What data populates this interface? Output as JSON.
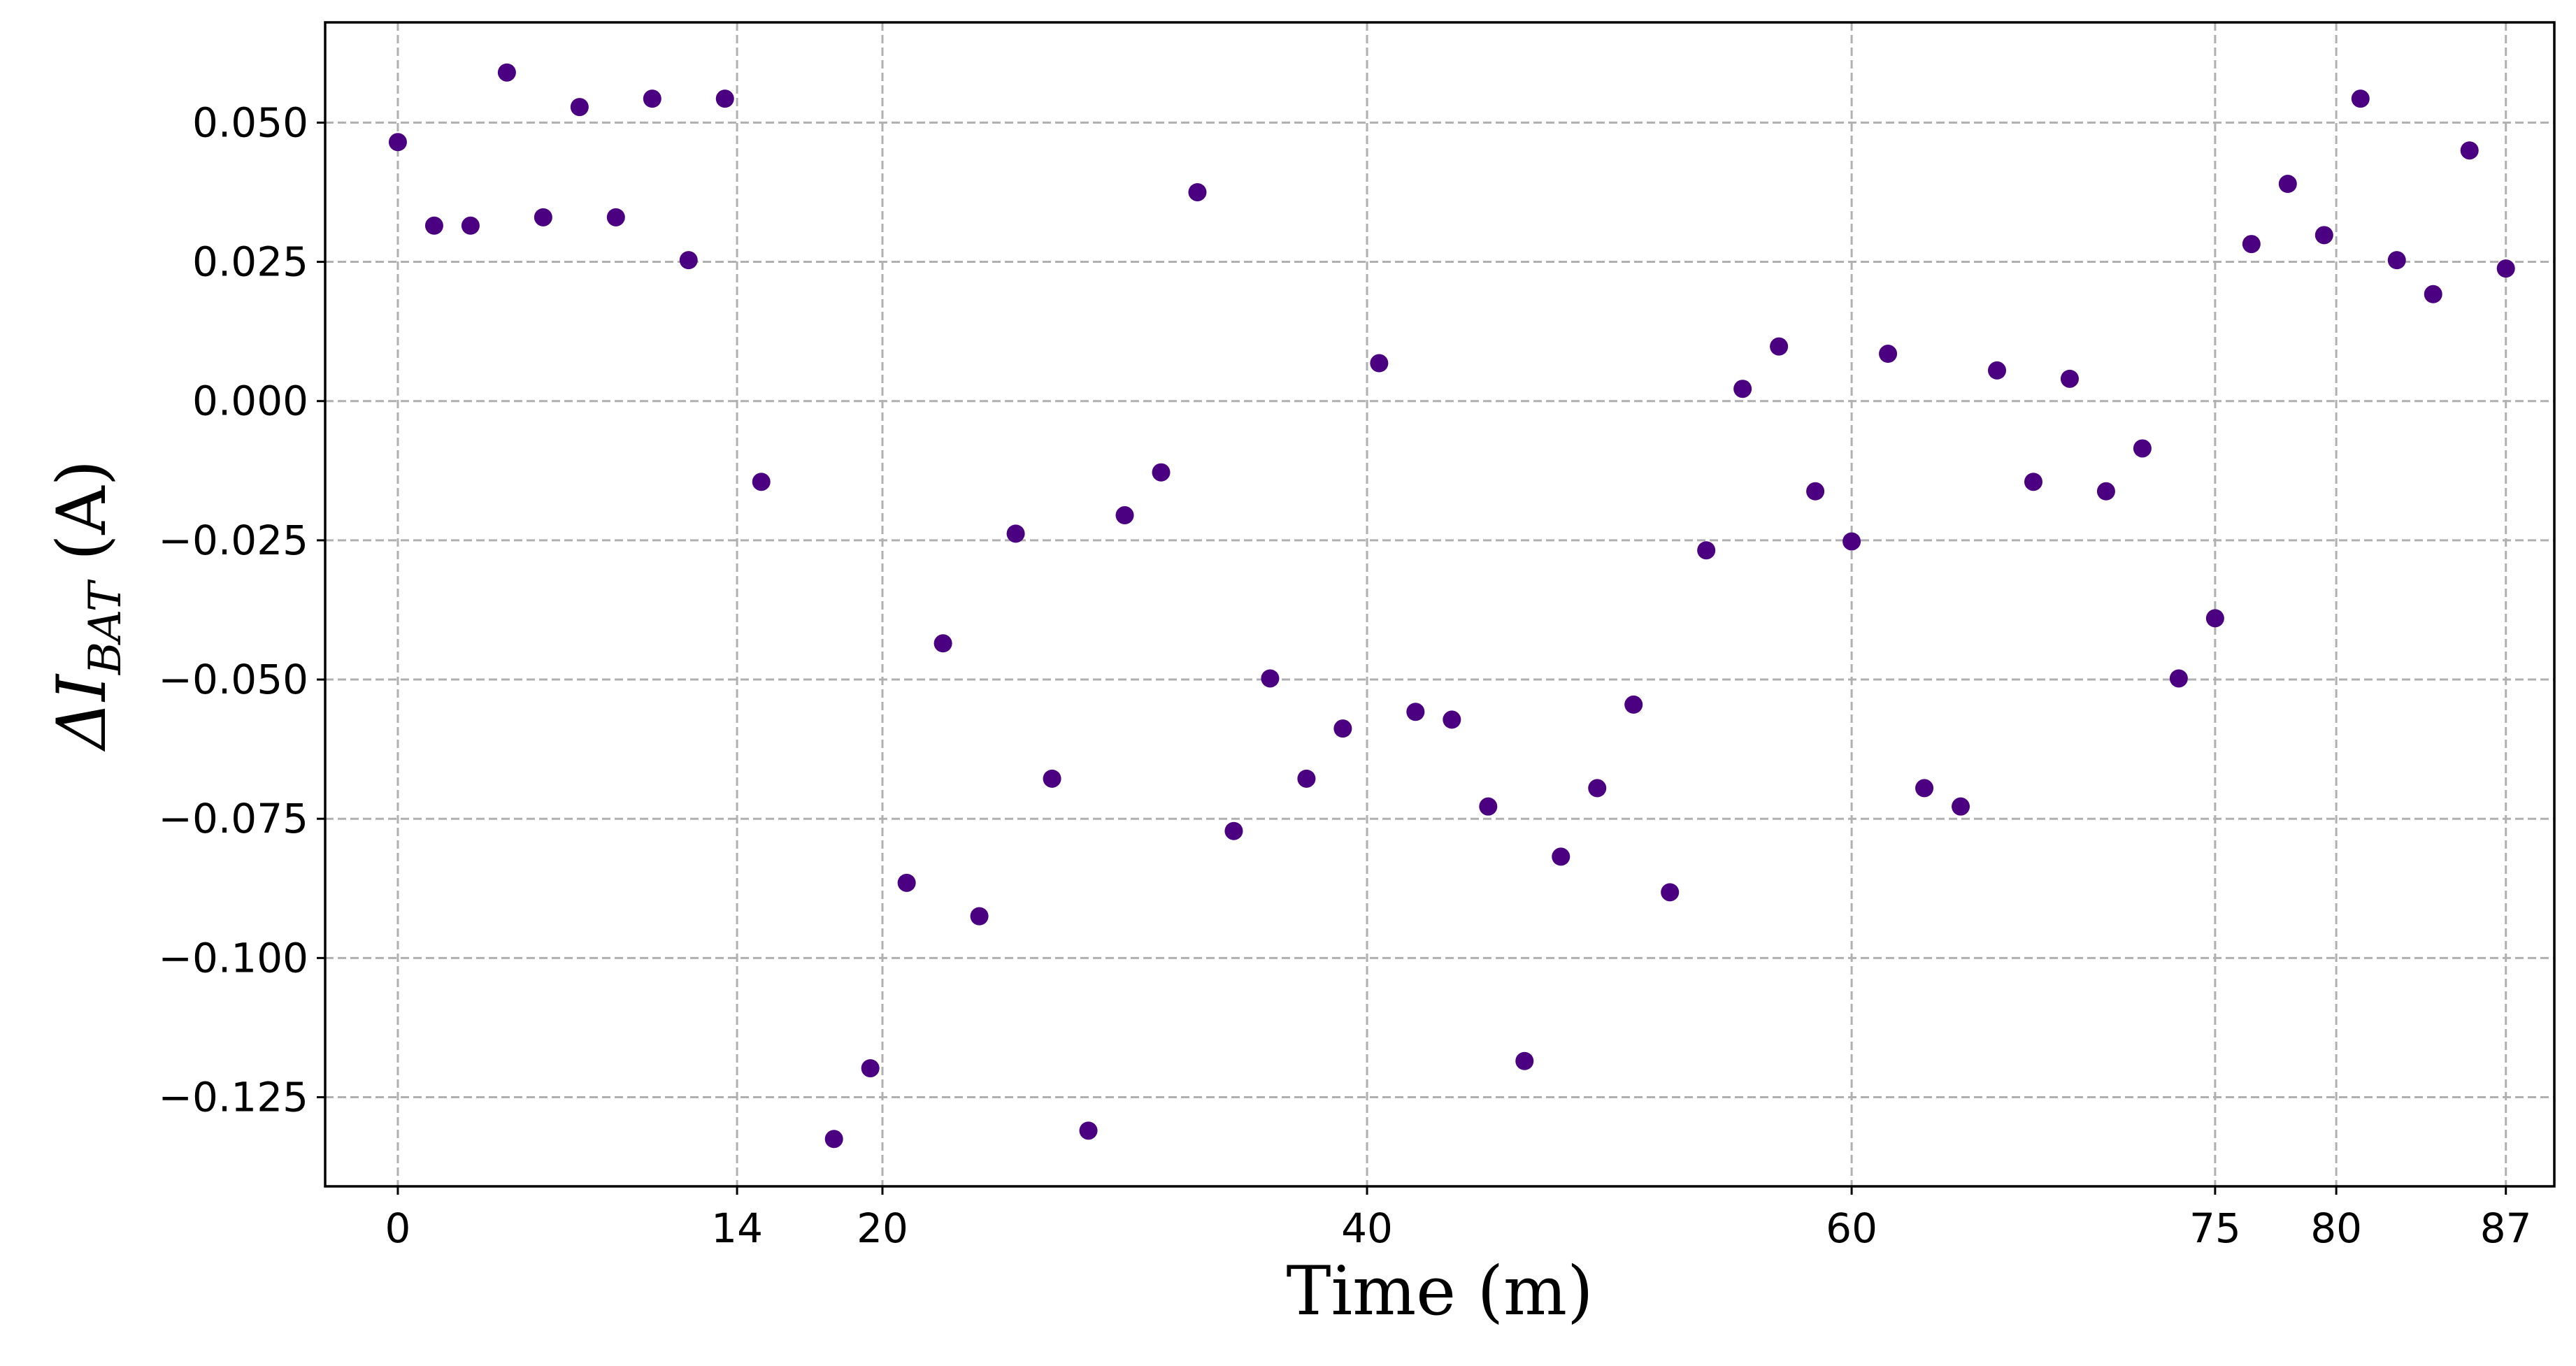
{
  "chart_data": {
    "type": "scatter",
    "title": "",
    "xlabel": "Time (m)",
    "ylabel": {
      "prefix": "ΔI",
      "subscript": "BAT",
      "unit": " (A)"
    },
    "xlim": [
      -3,
      89
    ],
    "ylim": [
      -0.141,
      0.068
    ],
    "xticks": [
      0,
      14,
      20,
      40,
      60,
      75,
      80,
      87
    ],
    "yticks": [
      0.05,
      0.025,
      0.0,
      -0.025,
      -0.05,
      -0.075,
      -0.1,
      -0.125
    ],
    "ytick_labels": [
      "0.050",
      "0.025",
      "0.000",
      "−0.025",
      "−0.050",
      "−0.075",
      "−0.100",
      "−0.125"
    ],
    "grid": true,
    "marker_color": "#4b0082",
    "series": [
      {
        "x": [
          0,
          1.5,
          3,
          4.5,
          6,
          7.5,
          9,
          10.5,
          12,
          13.5,
          15,
          18,
          19.5,
          21,
          22.5,
          24,
          25.5,
          27,
          28.5,
          30,
          31.5,
          33,
          34.5,
          36,
          37.5,
          39,
          40.5,
          42,
          43.5,
          45,
          46.5,
          48,
          49.5,
          51,
          52.5,
          54,
          55.5,
          57,
          58.5,
          60,
          61.5,
          63,
          64.5,
          66,
          67.5,
          69,
          70.5,
          72,
          73.5,
          75,
          76.5,
          78,
          79.5,
          81,
          82.5,
          84,
          85.5,
          87
        ],
        "y": [
          0.0465,
          0.0315,
          0.0315,
          0.059,
          0.033,
          0.0528,
          0.033,
          0.0543,
          0.0253,
          0.0543,
          -0.0145,
          -0.1325,
          -0.1198,
          -0.0865,
          -0.0435,
          -0.0925,
          -0.0238,
          -0.0678,
          -0.131,
          -0.0205,
          -0.0128,
          0.0375,
          -0.0772,
          -0.0498,
          -0.0678,
          -0.0588,
          0.0068,
          -0.0558,
          -0.0572,
          -0.0728,
          -0.1185,
          -0.0818,
          -0.0695,
          -0.0545,
          -0.0882,
          -0.0268,
          0.0022,
          0.0098,
          -0.0162,
          -0.0252,
          0.0085,
          -0.0695,
          -0.0728,
          0.0055,
          -0.0145,
          0.004,
          -0.0162,
          -0.0085,
          -0.0498,
          -0.039,
          0.0282,
          0.039,
          0.0298,
          0.0543,
          0.0253,
          0.0192,
          0.045,
          0.0238
        ]
      }
    ]
  }
}
